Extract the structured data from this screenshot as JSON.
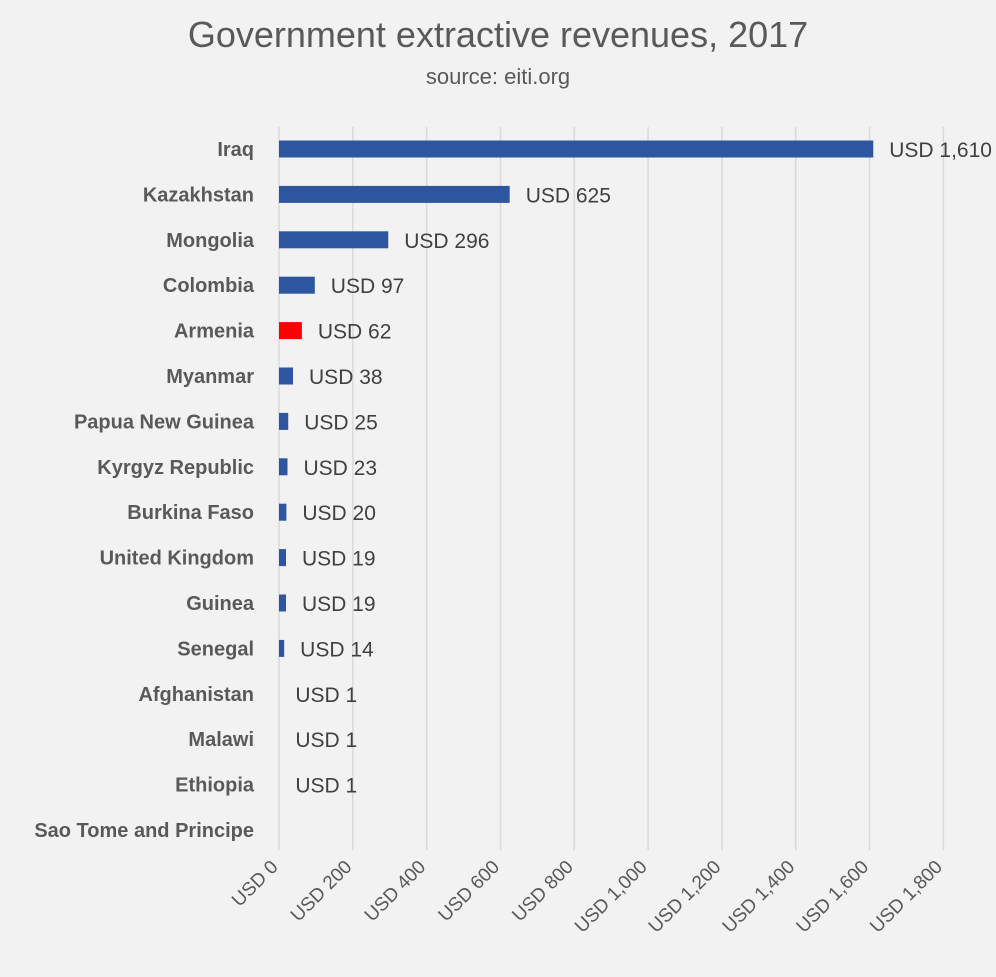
{
  "chart_data": {
    "type": "bar",
    "orientation": "horizontal",
    "title": "Government extractive revenues, 2017",
    "subtitle": "source: eiti.org",
    "categories": [
      "Iraq",
      "Kazakhstan",
      "Mongolia",
      "Colombia",
      "Armenia",
      "Myanmar",
      "Papua New Guinea",
      "Kyrgyz Republic",
      "Burkina Faso",
      "United Kingdom",
      "Guinea",
      "Senegal",
      "Afghanistan",
      "Malawi",
      "Ethiopia",
      "Sao Tome and Principe"
    ],
    "values": [
      1610,
      625,
      296,
      97,
      62,
      38,
      25,
      23,
      20,
      19,
      19,
      14,
      1,
      1,
      1,
      0
    ],
    "data_labels": [
      "USD 1,610",
      "USD 625",
      "USD 296",
      "USD 97",
      "USD 62",
      "USD 38",
      "USD 25",
      "USD 23",
      "USD 20",
      "USD 19",
      "USD 19",
      "USD 14",
      "USD 1",
      "USD 1",
      "USD 1",
      ""
    ],
    "highlight_category": "Armenia",
    "colors": {
      "bar": "#2e55a0",
      "highlight": "#ff0000",
      "grid": "#d9d9d9",
      "background": "#f2f2f2"
    },
    "xlim": [
      0,
      1800
    ],
    "x_ticks": [
      0,
      200,
      400,
      600,
      800,
      1000,
      1200,
      1400,
      1600,
      1800
    ],
    "x_tick_labels": [
      "USD 0",
      "USD 200",
      "USD 400",
      "USD 600",
      "USD 800",
      "USD 1,000",
      "USD 1,200",
      "USD 1,400",
      "USD 1,600",
      "USD 1,800"
    ],
    "grid": true,
    "legend": "none"
  }
}
